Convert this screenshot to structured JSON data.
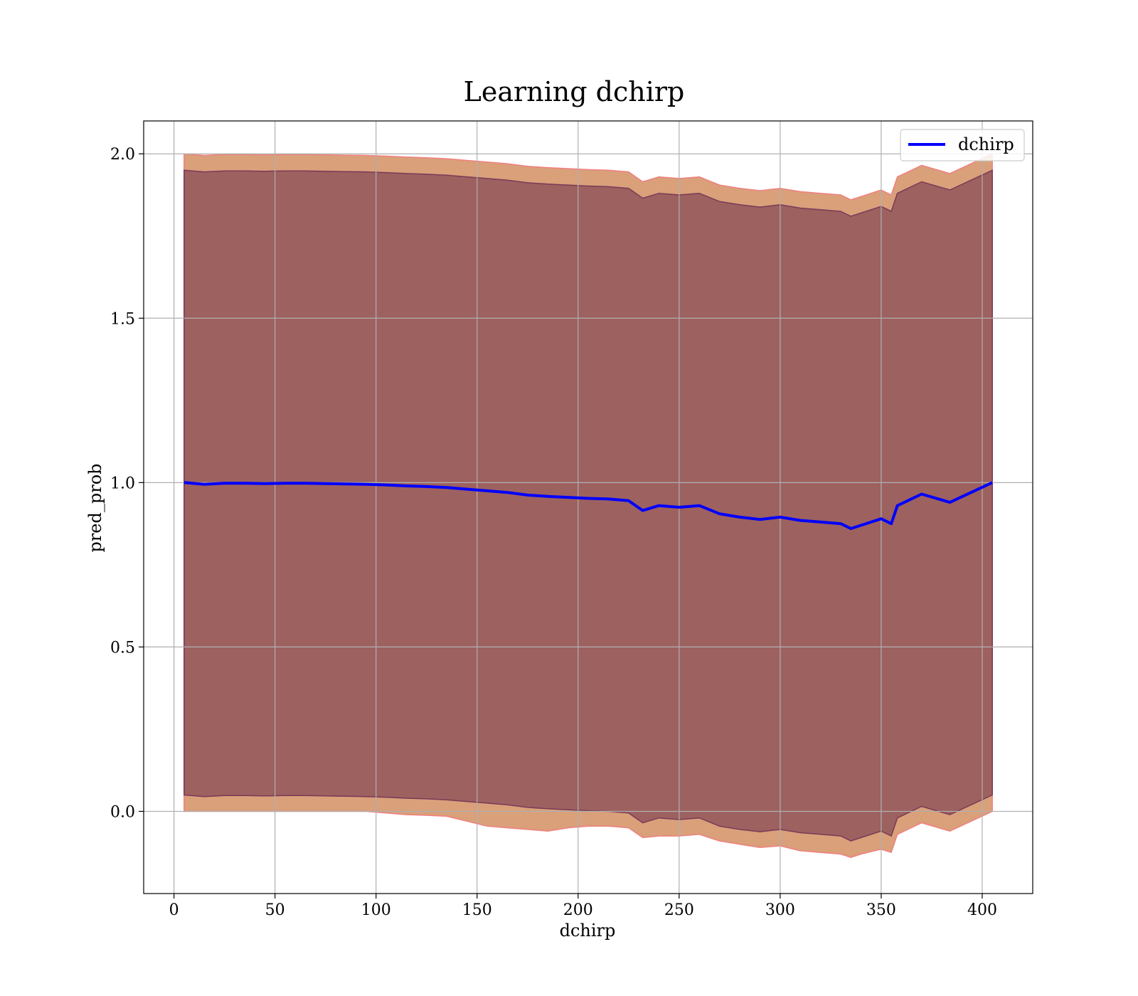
{
  "chart_data": {
    "type": "line",
    "title": "Learning dchirp",
    "xlabel": "dchirp",
    "ylabel": "pred_prob",
    "xlim": [
      -15,
      425
    ],
    "ylim": [
      -0.25,
      2.1
    ],
    "xticks": [
      0,
      50,
      100,
      150,
      200,
      250,
      300,
      350,
      400
    ],
    "yticks": [
      0.0,
      0.5,
      1.0,
      1.5,
      2.0
    ],
    "grid": true,
    "legend_position": "top-right",
    "series": [
      {
        "name": "dchirp",
        "color": "#0000ff",
        "x": [
          5,
          15,
          25,
          35,
          45,
          55,
          65,
          75,
          85,
          95,
          105,
          115,
          125,
          135,
          145,
          155,
          165,
          175,
          185,
          195,
          205,
          215,
          225,
          232,
          240,
          250,
          260,
          270,
          280,
          290,
          300,
          310,
          320,
          330,
          335,
          340,
          350,
          355,
          358,
          370,
          384,
          405
        ],
        "y": [
          1.0,
          0.995,
          0.998,
          0.998,
          0.997,
          0.998,
          0.998,
          0.997,
          0.996,
          0.995,
          0.993,
          0.99,
          0.988,
          0.985,
          0.98,
          0.975,
          0.97,
          0.962,
          0.958,
          0.955,
          0.952,
          0.95,
          0.945,
          0.915,
          0.93,
          0.925,
          0.93,
          0.905,
          0.895,
          0.888,
          0.895,
          0.885,
          0.88,
          0.875,
          0.86,
          0.87,
          0.89,
          0.875,
          0.93,
          0.965,
          0.94,
          1.0
        ]
      }
    ],
    "bands": [
      {
        "color": "#d9a07a",
        "edge_color": "#f08080",
        "lower": [
          0.0,
          0.0,
          0.0,
          0.0,
          0.0,
          0.0,
          0.0,
          0.0,
          0.0,
          0.0,
          -0.005,
          -0.01,
          -0.012,
          -0.015,
          -0.03,
          -0.045,
          -0.05,
          -0.055,
          -0.06,
          -0.05,
          -0.045,
          -0.045,
          -0.05,
          -0.08,
          -0.075,
          -0.075,
          -0.07,
          -0.09,
          -0.1,
          -0.11,
          -0.105,
          -0.12,
          -0.125,
          -0.13,
          -0.14,
          -0.13,
          -0.115,
          -0.125,
          -0.07,
          -0.035,
          -0.06,
          0.0
        ],
        "upper": [
          2.0,
          1.995,
          1.998,
          1.998,
          1.997,
          1.998,
          1.998,
          1.997,
          1.996,
          1.995,
          1.993,
          1.99,
          1.988,
          1.985,
          1.98,
          1.975,
          1.97,
          1.962,
          1.958,
          1.955,
          1.952,
          1.95,
          1.945,
          1.915,
          1.93,
          1.925,
          1.93,
          1.905,
          1.895,
          1.888,
          1.895,
          1.885,
          1.88,
          1.875,
          1.86,
          1.87,
          1.89,
          1.875,
          1.93,
          1.965,
          1.94,
          2.0
        ]
      },
      {
        "color": "#6b2d4a",
        "edge_color": "#7a3a58",
        "lower": [
          0.05,
          0.045,
          0.048,
          0.048,
          0.047,
          0.048,
          0.048,
          0.047,
          0.046,
          0.045,
          0.043,
          0.04,
          0.038,
          0.035,
          0.03,
          0.025,
          0.02,
          0.012,
          0.008,
          0.005,
          0.002,
          0.0,
          -0.005,
          -0.035,
          -0.02,
          -0.025,
          -0.02,
          -0.045,
          -0.055,
          -0.062,
          -0.055,
          -0.065,
          -0.07,
          -0.075,
          -0.09,
          -0.08,
          -0.06,
          -0.075,
          -0.02,
          0.015,
          -0.01,
          0.05
        ],
        "upper": [
          1.95,
          1.945,
          1.948,
          1.948,
          1.947,
          1.948,
          1.948,
          1.947,
          1.946,
          1.945,
          1.943,
          1.94,
          1.938,
          1.935,
          1.93,
          1.925,
          1.92,
          1.912,
          1.908,
          1.905,
          1.902,
          1.9,
          1.895,
          1.865,
          1.88,
          1.875,
          1.88,
          1.855,
          1.845,
          1.838,
          1.845,
          1.835,
          1.83,
          1.825,
          1.81,
          1.82,
          1.84,
          1.825,
          1.88,
          1.915,
          1.89,
          1.95
        ]
      }
    ]
  }
}
